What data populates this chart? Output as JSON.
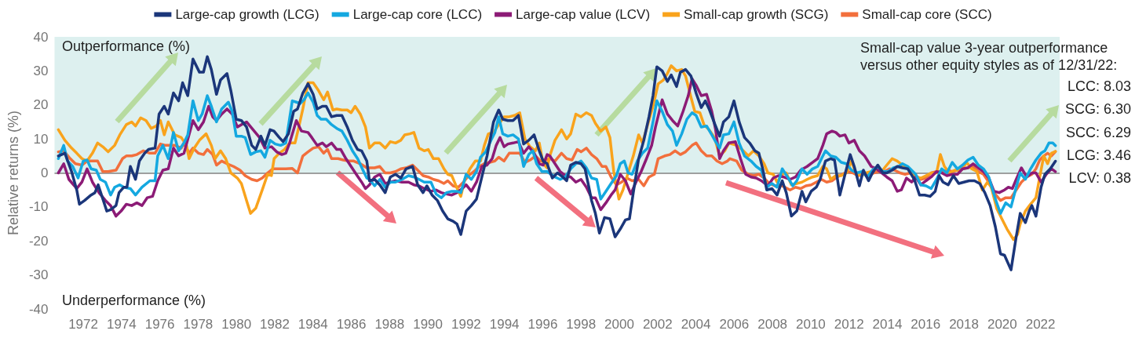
{
  "chart_data": {
    "type": "line",
    "ylabel": "Relative returns (%)",
    "annotations": [
      "Outperformance (%)",
      "Underperformance (%)",
      "Small-cap value 3-year outperformance versus other equity styles as of 12/31/22:",
      "LCC: 8.03",
      "SCG: 6.30",
      "SCC: 6.29",
      "LCG: 3.46",
      "LCV: 0.38"
    ],
    "xlim": [
      1970.5,
      2023
    ],
    "xticks": [
      1972,
      1974,
      1976,
      1978,
      1980,
      1982,
      1984,
      1986,
      1988,
      1990,
      1992,
      1994,
      1996,
      1998,
      2000,
      2002,
      2004,
      2006,
      2008,
      2010,
      2012,
      2014,
      2016,
      2018,
      2020,
      2022
    ],
    "ylim": [
      -40,
      40
    ],
    "yticks": [
      -40,
      -30,
      -20,
      -10,
      0,
      10,
      20,
      30,
      40
    ],
    "grid": false,
    "legend": "top",
    "marker": "none",
    "line_style": "solid",
    "bands": [
      {
        "axis": "y",
        "from": 0,
        "to": 40,
        "color": "#ddf0ef"
      }
    ],
    "ref_lines": [
      {
        "axis": "y",
        "value": 0,
        "color": "#808080"
      }
    ],
    "series": [
      {
        "name": "Large-cap growth (LCG)",
        "color": "#1b367a",
        "x": [
          1970.7,
          1971.04,
          1971.39,
          1971.66,
          1971.8,
          1972.07,
          1972.41,
          1972.61,
          1972.78,
          1973.23,
          1973.43,
          1973.71,
          1973.87,
          1974.12,
          1974.28,
          1974.46,
          1974.73,
          1974.93,
          1975.21,
          1975.41,
          1975.75,
          1975.96,
          1976.23,
          1976.44,
          1976.71,
          1976.98,
          1977.19,
          1977.46,
          1977.73,
          1978.07,
          1978.28,
          1978.48,
          1978.69,
          1978.96,
          1979.17,
          1979.51,
          1979.71,
          1979.99,
          1980.26,
          1980.53,
          1980.8,
          1981.01,
          1981.28,
          1981.49,
          1981.76,
          1981.96,
          1982.24,
          1982.44,
          1982.72,
          1982.99,
          1983.19,
          1983.47,
          1983.74,
          1984.01,
          1984.22,
          1984.49,
          1984.69,
          1984.97,
          1985.24,
          1985.51,
          1985.79,
          1986.06,
          1986.33,
          1986.54,
          1986.81,
          1986.95,
          1987.22,
          1987.49,
          1987.77,
          1988.04,
          1988.31,
          1988.59,
          1988.86,
          1989.2,
          1989.47,
          1989.75,
          1989.95,
          1990.22,
          1990.5,
          1990.77,
          1991.04,
          1991.32,
          1991.52,
          1991.72,
          1992.0,
          1992.27,
          1992.54,
          1992.82,
          1993.09,
          1993.43,
          1993.7,
          1993.91,
          1994.18,
          1994.45,
          1994.73,
          1995.0,
          1995.27,
          1995.55,
          1995.82,
          1996.02,
          1996.23,
          1996.5,
          1996.77,
          1997.05,
          1997.25,
          1997.46,
          1997.73,
          1998.0,
          1998.21,
          1998.41,
          1998.55,
          1998.75,
          1998.96,
          1999.23,
          1999.51,
          1999.78,
          2000.05,
          2000.32,
          2000.53,
          2000.73,
          2001.01,
          2001.28,
          2001.55,
          2001.76,
          2001.96,
          2002.24,
          2002.51,
          2002.71,
          2002.99,
          2003.19,
          2003.46,
          2003.74,
          2004.01,
          2004.28,
          2004.49,
          2004.69,
          2004.97,
          2005.24,
          2005.44,
          2005.72,
          2005.99,
          2006.26,
          2006.54,
          2006.81,
          2007.08,
          2007.29,
          2007.49,
          2007.7,
          2007.97,
          2008.24,
          2008.51,
          2008.72,
          2008.99,
          2009.27,
          2009.54,
          2009.74,
          2010.02,
          2010.29,
          2010.49,
          2010.77,
          2011.04,
          2011.24,
          2011.52,
          2011.79,
          2012.06,
          2012.27,
          2012.54,
          2012.75,
          2013.02,
          2013.22,
          2013.5,
          2013.77,
          2013.97,
          2014.25,
          2014.52,
          2014.79,
          2015.07,
          2015.41,
          2015.68,
          2015.95,
          2016.23,
          2016.5,
          2016.7,
          2016.91,
          2017.18,
          2017.45,
          2017.73,
          2018.0,
          2018.27,
          2018.55,
          2018.82,
          2019.09,
          2019.37,
          2019.64,
          2019.91,
          2020.12,
          2020.46,
          2020.73,
          2020.94,
          2021.21,
          2021.41,
          2021.55,
          2021.76,
          2022.03,
          2022.23,
          2022.51,
          2022.78
        ],
        "values": [
          5.0,
          5.8,
          0.4,
          -5.0,
          -9.2,
          -8.1,
          -6.5,
          -5.8,
          -3.5,
          -11.2,
          -10.8,
          -9.6,
          -5.8,
          -4.2,
          -4.2,
          1.9,
          -1.9,
          3.5,
          5.8,
          6.9,
          7.3,
          17.3,
          19.6,
          17.3,
          23.5,
          21.2,
          26.5,
          22.7,
          33.5,
          29.6,
          29.6,
          34.2,
          30.4,
          23.1,
          27.3,
          29.2,
          24.2,
          15.8,
          15.4,
          13.5,
          8.1,
          6.9,
          10.8,
          8.1,
          12.7,
          12.3,
          10.4,
          9.2,
          11.5,
          18.1,
          18.8,
          23.5,
          26.2,
          23.1,
          18.8,
          19.6,
          19.6,
          16.5,
          16.9,
          16.9,
          13.5,
          9.6,
          6.9,
          6.5,
          3.5,
          -2.3,
          -1.9,
          -3.5,
          -5.8,
          -1.2,
          -0.4,
          -1.5,
          1.2,
          1.9,
          -3.5,
          -5.8,
          -3.8,
          -6.5,
          -8.1,
          -11.2,
          -13.5,
          -14.2,
          -15.0,
          -18.1,
          -11.2,
          -9.6,
          -7.7,
          -1.2,
          5.0,
          15.0,
          18.5,
          15.8,
          15.4,
          15.4,
          16.9,
          8.5,
          9.6,
          11.2,
          6.5,
          3.5,
          2.7,
          -1.5,
          0.0,
          -1.2,
          -2.3,
          2.3,
          3.1,
          2.7,
          1.2,
          -4.2,
          -8.1,
          -11.9,
          -17.7,
          -13.1,
          -13.5,
          -18.8,
          -16.5,
          -13.8,
          -13.5,
          -5.8,
          4.2,
          9.6,
          16.5,
          22.7,
          31.2,
          30.0,
          26.9,
          28.8,
          25.4,
          29.6,
          30.4,
          28.5,
          23.5,
          19.2,
          21.2,
          18.8,
          14.6,
          10.8,
          15.0,
          16.5,
          21.2,
          15.0,
          10.4,
          8.8,
          6.5,
          5.8,
          1.2,
          -5.0,
          -4.6,
          -6.5,
          -2.3,
          -5.8,
          -12.7,
          -11.2,
          -5.4,
          -8.5,
          -5.4,
          -4.2,
          -1.9,
          3.5,
          4.2,
          3.8,
          -6.5,
          -0.4,
          5.4,
          1.9,
          -3.8,
          0.8,
          -2.3,
          0.0,
          2.3,
          0.0,
          0.0,
          0.8,
          1.9,
          1.5,
          1.2,
          -1.9,
          -6.5,
          -6.5,
          -6.9,
          -5.4,
          -0.8,
          -2.7,
          -3.5,
          -0.8,
          -3.1,
          -2.7,
          -2.3,
          -2.3,
          -3.1,
          -5.8,
          -9.6,
          -15.8,
          -23.8,
          -24.2,
          -28.5,
          -18.8,
          -11.9,
          -14.6,
          -11.2,
          -9.6,
          -12.7,
          -4.2,
          -0.4,
          1.2,
          3.46
        ]
      },
      {
        "name": "Large-cap core (LCC)",
        "color": "#14a8e0",
        "x": [
          1970.7,
          1970.98,
          1971.18,
          1971.45,
          1971.73,
          1972.0,
          1972.2,
          1972.41,
          1972.68,
          1972.89,
          1973.16,
          1973.43,
          1973.64,
          1973.91,
          1974.12,
          1974.46,
          1974.73,
          1975.07,
          1975.48,
          1975.75,
          1975.89,
          1976.16,
          1976.44,
          1976.71,
          1976.98,
          1977.26,
          1977.46,
          1977.73,
          1978.01,
          1978.21,
          1978.48,
          1978.69,
          1978.96,
          1979.23,
          1979.58,
          1979.78,
          1979.99,
          1980.26,
          1980.46,
          1980.74,
          1981.01,
          1981.28,
          1981.49,
          1981.76,
          1982.03,
          1982.31,
          1982.58,
          1982.92,
          1983.13,
          1983.33,
          1983.53,
          1983.74,
          1984.01,
          1984.22,
          1984.42,
          1984.69,
          1984.97,
          1985.24,
          1985.51,
          1985.79,
          1986.06,
          1986.33,
          1986.61,
          1986.81,
          1986.95,
          1987.22,
          1987.49,
          1987.77,
          1988.04,
          1988.31,
          1988.65,
          1988.99,
          1989.27,
          1989.54,
          1989.81,
          1990.16,
          1990.43,
          1990.7,
          1990.97,
          1991.25,
          1991.52,
          1991.72,
          1992.0,
          1992.27,
          1992.54,
          1992.75,
          1993.02,
          1993.3,
          1993.5,
          1993.7,
          1993.91,
          1994.18,
          1994.45,
          1994.73,
          1995.0,
          1995.27,
          1995.48,
          1995.68,
          1995.96,
          1996.23,
          1996.64,
          1996.91,
          1997.18,
          1997.46,
          1997.73,
          1998.0,
          1998.28,
          1998.55,
          1998.82,
          1999.03,
          1999.3,
          1999.57,
          1999.85,
          2000.05,
          2000.26,
          2000.46,
          2000.67,
          2000.94,
          2001.21,
          2001.48,
          2001.76,
          2001.96,
          2002.24,
          2002.51,
          2002.78,
          2002.99,
          2003.26,
          2003.53,
          2003.8,
          2004.01,
          2004.28,
          2004.56,
          2004.83,
          2005.03,
          2005.24,
          2005.44,
          2005.72,
          2005.99,
          2006.26,
          2006.54,
          2006.88,
          2007.15,
          2007.42,
          2007.7,
          2007.97,
          2008.24,
          2008.51,
          2008.79,
          2009.06,
          2009.27,
          2009.54,
          2009.81,
          2010.09,
          2010.36,
          2010.56,
          2010.77,
          2011.04,
          2011.31,
          2011.59,
          2011.86,
          2012.13,
          2012.4,
          2012.68,
          2012.95,
          2013.22,
          2013.5,
          2013.77,
          2014.04,
          2014.32,
          2014.59,
          2014.79,
          2015.07,
          2015.48,
          2015.75,
          2016.02,
          2016.29,
          2016.57,
          2016.84,
          2017.11,
          2017.39,
          2017.66,
          2017.93,
          2018.21,
          2018.48,
          2018.75,
          2019.02,
          2019.3,
          2019.5,
          2019.71,
          2019.91,
          2020.18,
          2020.46,
          2020.73,
          2020.94,
          2021.21,
          2021.48,
          2021.76,
          2022.03,
          2022.23,
          2022.44,
          2022.64,
          2022.78
        ],
        "values": [
          4.2,
          8.1,
          3.5,
          1.9,
          -1.5,
          3.5,
          3.8,
          1.2,
          0.8,
          -1.9,
          -2.7,
          -6.5,
          -4.2,
          -3.5,
          -4.2,
          -4.6,
          -6.5,
          -4.2,
          -2.3,
          -2.3,
          5.0,
          8.1,
          4.2,
          11.9,
          6.5,
          8.8,
          11.2,
          21.2,
          15.4,
          17.3,
          22.7,
          19.6,
          15.0,
          18.8,
          20.8,
          18.1,
          10.8,
          10.8,
          10.4,
          5.4,
          6.2,
          6.5,
          4.6,
          9.6,
          8.5,
          8.1,
          8.8,
          21.2,
          20.8,
          20.4,
          21.5,
          23.5,
          20.8,
          16.9,
          15.8,
          15.8,
          14.2,
          13.1,
          12.3,
          9.6,
          6.5,
          4.2,
          0.8,
          -1.5,
          -1.9,
          -3.8,
          -1.9,
          -4.2,
          -2.7,
          -2.7,
          -1.9,
          -0.8,
          -1.2,
          -1.9,
          -2.7,
          -2.7,
          -6.2,
          -7.3,
          -5.8,
          -5.4,
          -5.4,
          -5.8,
          -0.4,
          -1.9,
          0.4,
          4.6,
          6.2,
          9.6,
          11.9,
          16.5,
          11.5,
          10.8,
          11.2,
          10.0,
          1.9,
          5.4,
          6.5,
          2.7,
          0.4,
          0.4,
          -1.2,
          -1.9,
          -1.2,
          1.2,
          2.7,
          3.5,
          1.5,
          -1.5,
          -1.9,
          -7.7,
          -5.4,
          -3.1,
          -0.8,
          2.7,
          3.5,
          0.0,
          -0.4,
          3.5,
          5.8,
          7.3,
          15.0,
          21.2,
          18.1,
          14.2,
          12.3,
          8.1,
          11.5,
          15.8,
          17.7,
          16.9,
          13.5,
          13.8,
          11.2,
          9.2,
          7.3,
          11.2,
          11.5,
          15.0,
          8.8,
          5.0,
          3.5,
          1.9,
          0.8,
          -4.2,
          -3.1,
          -4.2,
          1.2,
          -1.2,
          -3.8,
          -2.3,
          1.2,
          -0.4,
          1.2,
          1.9,
          4.2,
          6.5,
          5.0,
          4.6,
          3.1,
          2.7,
          0.8,
          0.0,
          0.4,
          -1.2,
          0.8,
          1.9,
          0.4,
          0.4,
          1.5,
          1.9,
          2.7,
          1.9,
          -0.4,
          -3.5,
          -3.8,
          -4.6,
          -1.9,
          1.2,
          0.0,
          3.1,
          1.2,
          2.3,
          3.8,
          4.6,
          2.3,
          1.2,
          -1.2,
          -5.0,
          -8.8,
          -11.9,
          -8.8,
          -10.0,
          -4.2,
          0.0,
          -1.9,
          1.2,
          3.8,
          5.8,
          6.5,
          8.8,
          8.8,
          8.03
        ]
      },
      {
        "name": "Large-cap value (LCV)",
        "color": "#8c1b76",
        "x": [
          1970.7,
          1970.98,
          1971.25,
          1971.66,
          1971.93,
          1972.2,
          1972.48,
          1972.82,
          1973.16,
          1973.43,
          1973.71,
          1973.98,
          1974.25,
          1974.53,
          1974.8,
          1975.07,
          1975.34,
          1975.62,
          1975.89,
          1976.16,
          1976.44,
          1976.71,
          1976.98,
          1977.26,
          1977.73,
          1978.01,
          1978.28,
          1978.55,
          1978.76,
          1978.96,
          1979.23,
          1979.51,
          1979.78,
          1980.05,
          1980.26,
          1980.53,
          1980.87,
          1981.21,
          1981.49,
          1981.83,
          1982.1,
          1982.37,
          1982.58,
          1982.78,
          1983.13,
          1983.4,
          1983.74,
          1983.94,
          1984.22,
          1984.49,
          1984.69,
          1984.97,
          1985.24,
          1985.45,
          1985.72,
          1985.99,
          1986.26,
          1986.54,
          1986.74,
          1986.95,
          1987.22,
          1987.49,
          1987.77,
          1988.04,
          1988.31,
          1988.65,
          1988.99,
          1989.27,
          1989.54,
          1989.81,
          1990.16,
          1990.43,
          1990.7,
          1990.97,
          1991.25,
          1991.52,
          1991.79,
          1992.0,
          1992.27,
          1992.54,
          1992.82,
          1993.09,
          1993.36,
          1993.57,
          1993.77,
          1993.98,
          1994.18,
          1994.45,
          1994.73,
          1995.0,
          1995.27,
          1995.55,
          1995.82,
          1996.02,
          1996.23,
          1996.37,
          1996.64,
          1996.91,
          1997.18,
          1997.46,
          1997.73,
          1998.0,
          1998.28,
          1998.55,
          1998.75,
          1999.03,
          1999.3,
          1999.57,
          1999.78,
          2000.05,
          2000.32,
          2000.6,
          2000.87,
          2001.14,
          2001.42,
          2001.69,
          2001.89,
          2002.24,
          2002.51,
          2002.78,
          2003.05,
          2003.33,
          2003.6,
          2003.8,
          2004.01,
          2004.28,
          2004.56,
          2004.83,
          2005.03,
          2005.24,
          2005.44,
          2005.72,
          2006.06,
          2006.33,
          2006.6,
          2006.88,
          2007.15,
          2007.42,
          2007.76,
          2008.04,
          2008.31,
          2008.58,
          2008.92,
          2009.2,
          2009.47,
          2009.81,
          2010.09,
          2010.36,
          2010.63,
          2010.83,
          2011.11,
          2011.31,
          2011.52,
          2011.79,
          2011.99,
          2012.27,
          2012.54,
          2012.81,
          2013.16,
          2013.43,
          2013.7,
          2013.97,
          2014.25,
          2014.52,
          2014.73,
          2015.0,
          2015.27,
          2015.48,
          2015.75,
          2016.02,
          2016.29,
          2016.57,
          2016.84,
          2017.11,
          2017.39,
          2017.66,
          2017.93,
          2018.21,
          2018.48,
          2018.75,
          2019.02,
          2019.3,
          2019.57,
          2019.84,
          2020.12,
          2020.32,
          2020.53,
          2020.73,
          2021.0,
          2021.28,
          2021.55,
          2021.76,
          2022.03,
          2022.3,
          2022.57,
          2022.78
        ],
        "values": [
          0.0,
          2.7,
          -1.9,
          -4.6,
          -2.7,
          1.2,
          -2.7,
          -5.8,
          -8.1,
          -9.6,
          -12.7,
          -11.2,
          -9.2,
          -9.6,
          -8.8,
          -9.6,
          -7.3,
          -6.9,
          -2.3,
          0.8,
          1.2,
          7.3,
          5.0,
          5.8,
          15.4,
          12.7,
          15.0,
          19.6,
          16.5,
          15.4,
          17.3,
          18.8,
          17.3,
          13.5,
          14.2,
          15.0,
          12.7,
          10.4,
          7.3,
          7.7,
          6.2,
          5.4,
          5.8,
          8.8,
          15.4,
          12.3,
          11.9,
          10.4,
          8.1,
          8.8,
          7.7,
          8.8,
          6.9,
          6.9,
          4.2,
          1.9,
          -0.4,
          -2.7,
          -4.6,
          -3.5,
          -1.2,
          -0.4,
          -3.1,
          -2.7,
          -2.3,
          -2.7,
          -2.7,
          -3.5,
          -3.8,
          -4.6,
          -5.4,
          -5.0,
          -5.8,
          -6.2,
          -6.5,
          -5.8,
          -4.6,
          -3.5,
          -5.4,
          -2.7,
          1.9,
          2.3,
          4.2,
          8.1,
          10.4,
          7.7,
          8.5,
          8.8,
          9.2,
          5.8,
          7.7,
          5.8,
          2.7,
          2.3,
          5.4,
          5.0,
          2.7,
          0.4,
          -0.8,
          -1.2,
          -2.7,
          -1.9,
          -4.2,
          -7.3,
          -7.3,
          -10.8,
          -8.8,
          -6.5,
          -5.0,
          -0.4,
          -2.3,
          -6.2,
          -2.7,
          0.4,
          4.2,
          8.1,
          13.5,
          21.5,
          17.3,
          15.4,
          13.8,
          18.1,
          22.7,
          27.7,
          25.8,
          22.7,
          23.1,
          18.1,
          12.7,
          4.2,
          6.5,
          8.8,
          9.2,
          4.2,
          -0.4,
          -1.2,
          -1.5,
          -2.3,
          -3.8,
          -1.5,
          -0.8,
          -1.2,
          -1.9,
          -1.2,
          0.8,
          1.9,
          3.1,
          4.2,
          8.1,
          11.5,
          12.3,
          11.9,
          10.8,
          11.2,
          8.8,
          9.6,
          6.5,
          5.0,
          1.9,
          1.2,
          0.0,
          -1.2,
          -2.3,
          -5.4,
          -5.0,
          -1.5,
          -2.7,
          -1.2,
          -3.5,
          -2.3,
          -1.2,
          0.4,
          0.0,
          -0.8,
          -0.4,
          -0.4,
          1.2,
          1.5,
          2.7,
          1.5,
          0.4,
          -1.5,
          -5.4,
          -5.8,
          -5.0,
          -4.2,
          -4.6,
          -1.9,
          1.5,
          -1.2,
          0.0,
          0.0,
          -2.7,
          -0.4,
          1.2,
          0.38
        ]
      },
      {
        "name": "Small-cap growth (SCG)",
        "color": "#f9a31c",
        "x": [
          1970.7,
          1971.04,
          1971.39,
          1971.66,
          1971.93,
          1972.2,
          1972.48,
          1972.75,
          1973.02,
          1973.3,
          1973.64,
          1973.91,
          1974.25,
          1974.53,
          1974.73,
          1975.0,
          1975.28,
          1975.55,
          1975.82,
          1976.03,
          1976.23,
          1976.44,
          1976.78,
          1977.12,
          1977.39,
          1977.53,
          1977.8,
          1978.07,
          1978.42,
          1978.69,
          1978.89,
          1979.17,
          1979.44,
          1979.71,
          1980.05,
          1980.26,
          1980.53,
          1980.74,
          1981.01,
          1981.35,
          1981.63,
          1981.83,
          1981.97,
          1982.24,
          1982.51,
          1982.78,
          1983.06,
          1983.26,
          1983.47,
          1983.74,
          1984.01,
          1984.29,
          1984.56,
          1984.76,
          1985.04,
          1985.24,
          1985.51,
          1985.79,
          1985.99,
          1986.2,
          1986.47,
          1986.74,
          1986.95,
          1987.22,
          1987.49,
          1987.77,
          1988.04,
          1988.31,
          1988.59,
          1988.79,
          1989.06,
          1989.27,
          1989.54,
          1989.81,
          1990.02,
          1990.29,
          1990.56,
          1990.84,
          1991.04,
          1991.25,
          1991.45,
          1991.72,
          1991.93,
          1992.2,
          1992.48,
          1992.75,
          1992.95,
          1993.16,
          1993.43,
          1993.7,
          1993.98,
          1994.25,
          1994.52,
          1994.8,
          1995.07,
          1995.34,
          1995.62,
          1995.82,
          1996.02,
          1996.23,
          1996.37,
          1996.64,
          1996.98,
          1997.25,
          1997.46,
          1997.73,
          1998.0,
          1998.28,
          1998.55,
          1998.75,
          1999.03,
          1999.3,
          1999.51,
          1999.71,
          1999.98,
          2000.19,
          2000.46,
          2000.73,
          2001.01,
          2001.21,
          2001.48,
          2001.76,
          2002.03,
          2002.3,
          2002.51,
          2002.71,
          2002.99,
          2003.26,
          2003.46,
          2003.74,
          2003.94,
          2004.21,
          2004.42,
          2004.69,
          2004.97,
          2005.24,
          2005.51,
          2005.72,
          2006.13,
          2006.4,
          2006.74,
          2007.01,
          2007.29,
          2007.56,
          2007.76,
          2008.04,
          2008.24,
          2008.51,
          2008.72,
          2008.99,
          2009.27,
          2009.54,
          2009.81,
          2010.09,
          2010.36,
          2010.63,
          2010.83,
          2011.04,
          2011.31,
          2011.59,
          2011.86,
          2012.13,
          2012.34,
          2012.61,
          2012.88,
          2013.16,
          2013.43,
          2013.7,
          2013.97,
          2014.25,
          2014.52,
          2014.79,
          2015.07,
          2015.2,
          2015.48,
          2015.75,
          2016.02,
          2016.29,
          2016.57,
          2016.77,
          2016.98,
          2017.25,
          2017.52,
          2017.86,
          2018.14,
          2018.41,
          2018.68,
          2018.96,
          2019.23,
          2019.43,
          2019.71,
          2019.98,
          2020.25,
          2020.59,
          2020.8,
          2020.94,
          2021.21,
          2021.48,
          2021.76,
          2021.96,
          2022.17,
          2022.37,
          2022.57,
          2022.78
        ],
        "values": [
          12.7,
          9.6,
          7.3,
          5.8,
          4.2,
          3.5,
          5.8,
          8.8,
          7.7,
          6.2,
          8.1,
          11.2,
          14.2,
          15.0,
          13.8,
          16.2,
          15.4,
          13.1,
          13.8,
          15.4,
          11.2,
          15.0,
          11.2,
          10.4,
          8.1,
          4.2,
          7.3,
          9.6,
          11.5,
          8.1,
          4.2,
          6.5,
          4.2,
          0.0,
          -1.5,
          -3.1,
          -8.1,
          -11.9,
          -10.4,
          -5.0,
          -0.4,
          -0.8,
          4.2,
          5.8,
          6.9,
          8.8,
          8.8,
          13.5,
          18.8,
          26.5,
          26.5,
          24.2,
          21.5,
          23.8,
          18.5,
          18.8,
          18.5,
          18.5,
          17.7,
          19.6,
          17.3,
          13.5,
          7.3,
          8.8,
          8.8,
          7.3,
          9.2,
          8.8,
          9.6,
          11.2,
          11.5,
          11.9,
          7.3,
          6.5,
          6.9,
          4.2,
          4.2,
          1.2,
          -0.4,
          -0.8,
          -3.5,
          -6.9,
          -1.9,
          1.2,
          3.5,
          3.5,
          8.1,
          11.5,
          11.9,
          14.2,
          16.5,
          16.5,
          16.9,
          17.7,
          10.0,
          7.7,
          6.5,
          8.8,
          2.7,
          1.5,
          5.0,
          9.6,
          12.7,
          10.0,
          11.5,
          17.3,
          16.5,
          17.7,
          16.9,
          14.6,
          12.3,
          13.5,
          10.4,
          0.4,
          -7.7,
          -5.0,
          0.0,
          5.0,
          11.2,
          8.8,
          14.2,
          19.6,
          26.2,
          27.3,
          29.2,
          31.5,
          30.0,
          30.4,
          28.5,
          22.3,
          18.1,
          17.7,
          14.2,
          12.7,
          10.4,
          5.0,
          6.5,
          8.8,
          8.1,
          6.9,
          5.0,
          6.5,
          5.0,
          2.7,
          0.0,
          -0.4,
          -2.7,
          -0.4,
          0.0,
          -3.5,
          -3.1,
          -2.7,
          -1.9,
          -1.2,
          -0.8,
          1.9,
          1.2,
          -1.9,
          -0.8,
          -0.8,
          0.0,
          3.5,
          0.0,
          -0.8,
          0.0,
          0.4,
          1.2,
          0.4,
          2.3,
          4.2,
          3.5,
          2.3,
          1.5,
          0.0,
          -1.2,
          -1.5,
          -0.8,
          0.0,
          0.0,
          5.4,
          1.9,
          0.0,
          0.8,
          0.8,
          3.1,
          1.2,
          0.4,
          -5.0,
          -2.7,
          -4.2,
          -10.4,
          -13.5,
          -16.5,
          -19.6,
          -18.1,
          -15.0,
          -11.2,
          -9.2,
          -7.3,
          -1.2,
          5.0,
          2.7,
          5.8,
          6.3
        ]
      },
      {
        "name": "Small-cap core (SCC)",
        "color": "#f26f3c",
        "x": [
          1970.7,
          1970.98,
          1971.32,
          1971.59,
          1971.93,
          1972.2,
          1972.48,
          1972.75,
          1973.02,
          1973.3,
          1973.71,
          1974.05,
          1974.25,
          1974.53,
          1974.8,
          1975.14,
          1975.48,
          1975.75,
          1976.03,
          1976.3,
          1976.57,
          1976.78,
          1977.12,
          1977.26,
          1977.53,
          1977.73,
          1978.01,
          1978.28,
          1978.48,
          1978.76,
          1978.96,
          1979.23,
          1979.51,
          1979.85,
          1980.19,
          1980.46,
          1980.8,
          1981.08,
          1981.35,
          1981.63,
          1981.9,
          1982.24,
          1982.58,
          1982.92,
          1983.19,
          1983.47,
          1983.74,
          1984.01,
          1984.29,
          1984.56,
          1984.76,
          1984.97,
          1985.31,
          1985.58,
          1985.86,
          1986.13,
          1986.47,
          1986.81,
          1987.22,
          1987.49,
          1987.77,
          1988.04,
          1988.31,
          1988.59,
          1988.86,
          1989.2,
          1989.47,
          1989.75,
          1990.02,
          1990.29,
          1990.56,
          1990.84,
          1991.04,
          1991.32,
          1991.59,
          1991.86,
          1992.13,
          1992.41,
          1992.68,
          1992.95,
          1993.23,
          1993.5,
          1993.7,
          1993.98,
          1994.25,
          1994.52,
          1994.8,
          1995.07,
          1995.34,
          1995.62,
          1995.89,
          1996.16,
          1996.37,
          1996.64,
          1996.98,
          1997.25,
          1997.53,
          1997.8,
          1998.0,
          1998.28,
          1998.55,
          1998.82,
          1999.1,
          1999.3,
          1999.57,
          1999.85,
          2000.12,
          2000.39,
          2000.67,
          2001.01,
          2001.28,
          2001.55,
          2001.83,
          2002.03,
          2002.37,
          2002.64,
          2002.92,
          2003.19,
          2003.46,
          2003.8,
          2004.01,
          2004.28,
          2004.56,
          2004.83,
          2005.1,
          2005.37,
          2005.65,
          2005.78,
          2006.13,
          2006.4,
          2006.74,
          2007.01,
          2007.29,
          2007.56,
          2007.83,
          2008.11,
          2008.38,
          2008.65,
          2008.92,
          2009.2,
          2009.47,
          2009.74,
          2010.02,
          2010.29,
          2010.56,
          2010.83,
          2011.11,
          2011.38,
          2011.65,
          2011.93,
          2012.2,
          2012.47,
          2012.75,
          2013.02,
          2013.29,
          2013.56,
          2013.84,
          2014.11,
          2014.38,
          2014.66,
          2014.93,
          2015.2,
          2015.48,
          2015.75,
          2016.02,
          2016.29,
          2016.57,
          2016.84,
          2017.11,
          2017.39,
          2017.66,
          2017.93,
          2018.21,
          2018.48,
          2018.75,
          2019.02,
          2019.3,
          2019.57,
          2019.91,
          2020.18,
          2020.46,
          2020.73,
          2021.0,
          2021.28,
          2021.55,
          2021.76,
          2021.96,
          2022.17,
          2022.37,
          2022.57,
          2022.78
        ],
        "values": [
          6.2,
          6.5,
          4.2,
          2.7,
          2.3,
          3.5,
          3.5,
          3.5,
          0.4,
          0.4,
          0.8,
          4.2,
          5.0,
          5.0,
          5.4,
          6.5,
          5.8,
          5.8,
          8.5,
          8.1,
          8.1,
          8.1,
          7.3,
          8.8,
          5.8,
          7.3,
          5.8,
          5.4,
          6.9,
          5.4,
          2.3,
          3.5,
          2.7,
          1.9,
          0.8,
          -0.8,
          -1.9,
          -2.3,
          -1.5,
          0.0,
          1.2,
          1.2,
          1.2,
          1.3,
          0.0,
          5.0,
          6.2,
          7.3,
          7.7,
          5.8,
          6.9,
          4.2,
          4.2,
          3.8,
          3.5,
          3.5,
          2.7,
          1.5,
          1.5,
          1.9,
          0.0,
          0.0,
          0.4,
          1.2,
          1.5,
          2.3,
          0.8,
          -0.8,
          -1.2,
          -1.9,
          -2.3,
          -3.1,
          -2.3,
          -3.8,
          -4.2,
          -2.7,
          -0.8,
          0.4,
          1.9,
          2.7,
          3.1,
          3.5,
          4.6,
          3.5,
          5.8,
          5.8,
          5.8,
          3.1,
          3.8,
          5.0,
          3.5,
          3.8,
          4.2,
          3.5,
          5.8,
          4.2,
          3.8,
          6.9,
          6.2,
          7.3,
          5.4,
          4.2,
          1.9,
          1.9,
          -1.2,
          -3.5,
          -2.7,
          -1.5,
          -2.3,
          -1.9,
          -3.8,
          -1.2,
          -0.4,
          4.2,
          5.0,
          5.4,
          6.5,
          5.4,
          6.2,
          8.1,
          8.8,
          6.5,
          5.0,
          5.0,
          3.5,
          2.7,
          3.5,
          4.2,
          3.5,
          0.8,
          -0.4,
          -0.8,
          -0.4,
          -1.5,
          -3.1,
          -3.8,
          -3.5,
          -4.2,
          -5.0,
          -4.2,
          -4.6,
          -3.8,
          -3.5,
          -2.7,
          -1.9,
          -2.7,
          -2.3,
          -1.2,
          -0.4,
          0.4,
          0.0,
          -0.8,
          -0.4,
          -0.8,
          0.0,
          0.4,
          0.4,
          1.2,
          0.8,
          0.0,
          -0.4,
          0.0,
          -0.8,
          -1.9,
          -1.5,
          0.0,
          0.4,
          0.4,
          0.8,
          0.4,
          0.8,
          1.2,
          1.5,
          1.9,
          0.4,
          -0.4,
          -2.7,
          -5.8,
          -8.1,
          -7.3,
          -7.3,
          -5.0,
          -2.7,
          -1.2,
          -0.4,
          1.2,
          3.8,
          5.0,
          5.8,
          5.0,
          6.29
        ]
      }
    ]
  }
}
